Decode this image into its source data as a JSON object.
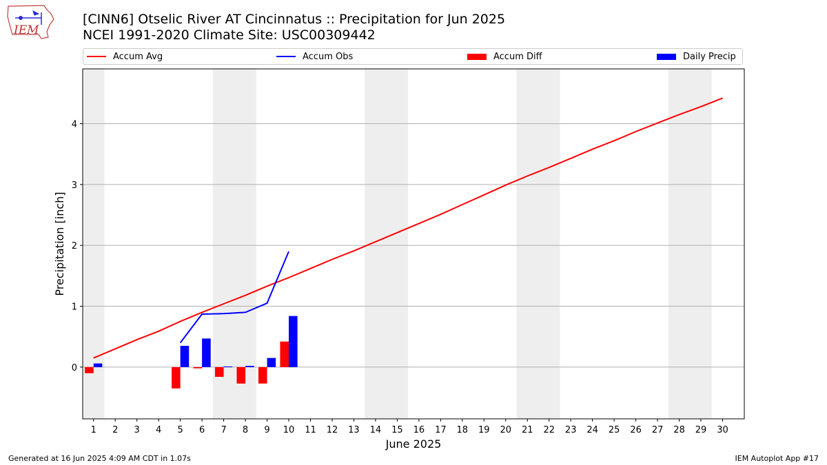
{
  "title_line1": "[CINN6] Otselic River  AT Cincinnatus :: Precipitation for Jun 2025",
  "title_line2": "NCEI 1991-2020 Climate Site: USC00309442",
  "logo_text": "IEM",
  "footer_left": "Generated at 16 Jun 2025 4:09 AM CDT in 1.07s",
  "footer_right": "IEM Autoplot App #17",
  "colors": {
    "avg": "#ff0000",
    "obs": "#0000ff",
    "diff": "#ff0000",
    "daily": "#0000ff",
    "weekend": "#eeeeee",
    "grid": "#b0b0b0"
  },
  "chart_data": {
    "type": "bar",
    "title": "[CINN6] Otselic River  AT Cincinnatus :: Precipitation for Jun 2025",
    "subtitle": "NCEI 1991-2020 Climate Site: USC00309442",
    "xlabel": "June 2025",
    "ylabel": "Precipitation [inch]",
    "xlim": [
      0.5,
      31
    ],
    "ylim": [
      -0.85,
      4.9
    ],
    "yticks": [
      0,
      1,
      2,
      3,
      4
    ],
    "x": [
      1,
      2,
      3,
      4,
      5,
      6,
      7,
      8,
      9,
      10,
      11,
      12,
      13,
      14,
      15,
      16,
      17,
      18,
      19,
      20,
      21,
      22,
      23,
      24,
      25,
      26,
      27,
      28,
      29,
      30
    ],
    "shaded_days": [
      [
        1,
        1
      ],
      [
        7,
        8
      ],
      [
        14,
        15
      ],
      [
        21,
        22
      ],
      [
        28,
        29
      ]
    ],
    "grid": "y",
    "legend": {
      "placement": "top",
      "entries": [
        "Accum Avg",
        "Accum Obs",
        "Accum Diff",
        "Daily Precip"
      ]
    },
    "series": [
      {
        "name": "Accum Avg",
        "kind": "line",
        "color": "#ff0000",
        "x": [
          1,
          2,
          3,
          4,
          5,
          6,
          7,
          8,
          9,
          10,
          11,
          12,
          13,
          14,
          15,
          16,
          17,
          18,
          19,
          20,
          21,
          22,
          23,
          24,
          25,
          26,
          27,
          28,
          29,
          30
        ],
        "values": [
          0.15,
          0.3,
          0.45,
          0.59,
          0.75,
          0.9,
          1.04,
          1.18,
          1.33,
          1.47,
          1.62,
          1.77,
          1.91,
          2.06,
          2.21,
          2.36,
          2.51,
          2.67,
          2.83,
          2.99,
          3.14,
          3.28,
          3.43,
          3.58,
          3.72,
          3.87,
          4.01,
          4.15,
          4.28,
          4.42
        ]
      },
      {
        "name": "Accum Obs",
        "kind": "line",
        "color": "#0000ff",
        "x": [
          5,
          6,
          7,
          8,
          9,
          10
        ],
        "values": [
          0.4,
          0.87,
          0.88,
          0.9,
          1.05,
          1.9
        ]
      },
      {
        "name": "Accum Diff",
        "kind": "bar",
        "color": "#ff0000",
        "x": [
          1,
          5,
          6,
          7,
          8,
          9,
          10
        ],
        "values": [
          -0.1,
          -0.35,
          -0.02,
          -0.16,
          -0.27,
          -0.27,
          0.42
        ]
      },
      {
        "name": "Daily Precip",
        "kind": "bar",
        "color": "#0000ff",
        "x": [
          1,
          5,
          6,
          7,
          8,
          9,
          10
        ],
        "values": [
          0.06,
          0.35,
          0.47,
          0.01,
          0.02,
          0.15,
          0.84
        ]
      }
    ]
  }
}
